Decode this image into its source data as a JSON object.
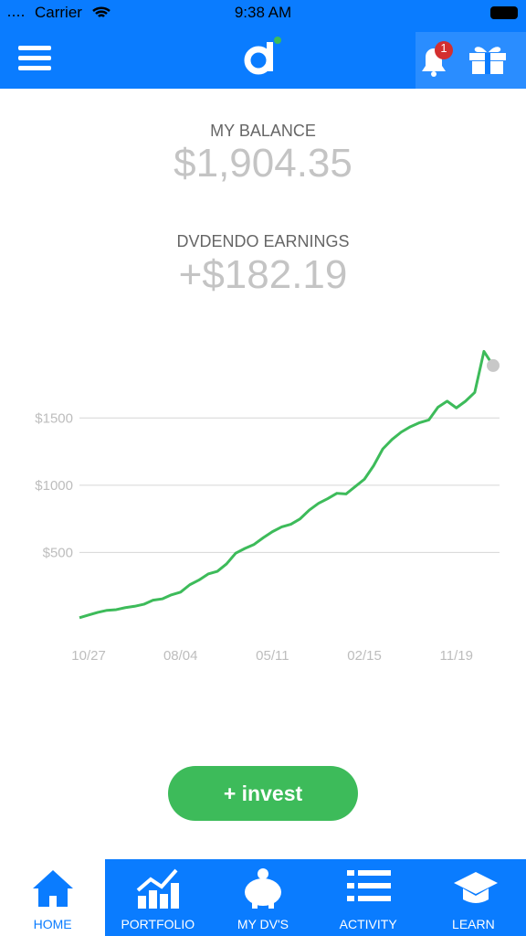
{
  "status_bar": {
    "carrier": "Carrier",
    "time": "9:38 AM"
  },
  "header": {
    "notification_count": "1"
  },
  "balance": {
    "label": "MY BALANCE",
    "value": "$1,904.35"
  },
  "earnings": {
    "label": "DVDENDO EARNINGS",
    "value": "+$182.19"
  },
  "chart_data": {
    "type": "line",
    "x": [
      0,
      1,
      2,
      3,
      4,
      5,
      6,
      7,
      8,
      9,
      10,
      11,
      12,
      13,
      14,
      15,
      16,
      17,
      18,
      19,
      20,
      21,
      22,
      23,
      24,
      25,
      26,
      27,
      28,
      29,
      30,
      31,
      32,
      33,
      34,
      35,
      36,
      37,
      38,
      39,
      40,
      41,
      42,
      43,
      44,
      45
    ],
    "series": [
      {
        "name": "Balance",
        "color": "#3dbb5a",
        "values": [
          15,
          35,
          55,
          70,
          75,
          90,
          100,
          115,
          145,
          155,
          185,
          205,
          260,
          295,
          340,
          360,
          415,
          495,
          530,
          560,
          610,
          655,
          690,
          710,
          750,
          815,
          865,
          900,
          940,
          935,
          990,
          1045,
          1145,
          1270,
          1340,
          1395,
          1435,
          1465,
          1485,
          1580,
          1625,
          1575,
          1625,
          1690,
          1995,
          1890
        ]
      }
    ],
    "xlim": [
      0,
      45
    ],
    "xticks": [
      {
        "value": 1,
        "label": "10/27"
      },
      {
        "value": 11,
        "label": "08/04"
      },
      {
        "value": 21,
        "label": "05/11"
      },
      {
        "value": 31,
        "label": "02/15"
      },
      {
        "value": 41,
        "label": "11/19"
      }
    ],
    "ylim": [
      0,
      2100
    ],
    "yticks": [
      {
        "value": 500,
        "label": "$500"
      },
      {
        "value": 1000,
        "label": "$1000"
      },
      {
        "value": 1500,
        "label": "$1500"
      }
    ],
    "grid": true
  },
  "invest_button": "+ invest",
  "tabs": [
    "HOME",
    "PORTFOLIO",
    "MY DV'S",
    "ACTIVITY",
    "LEARN"
  ]
}
